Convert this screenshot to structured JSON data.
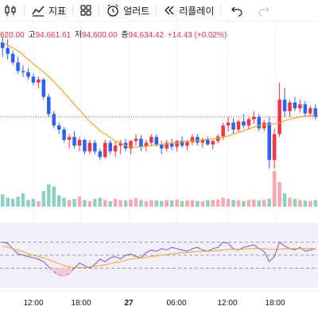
{
  "toolbar": {
    "candle_icon": "candlestick-icon",
    "indicators_label": "지표",
    "layout_icon": "layout-grid-icon",
    "alert_label": "얼러트",
    "replay_label": "리플레이",
    "undo_icon": "undo-icon",
    "redo_icon": "redo-icon"
  },
  "ohlc": {
    "open_value": "620.00",
    "high_label": "고",
    "high_value": "94,661.61",
    "low_label": "저",
    "low_value": "94,600.00",
    "close_label": "종",
    "close_value": "94,634.42",
    "change_value": "+14.43 (+0.02%)"
  },
  "colors": {
    "up": "#f23645",
    "down": "#2962ff",
    "ma": "#f5a623",
    "rsi": "#7e57c2",
    "rsi_band": "#f3effa",
    "overbought_fill": "#f9c8d0",
    "volume_up": "#f7a8b0",
    "volume_down": "#8fd0c4"
  },
  "x_axis": {
    "ticks": [
      "12:00",
      "18:00",
      "27",
      "06:00",
      "12:00",
      "18:00"
    ],
    "bold_tick": "27"
  },
  "chart_data": {
    "type": "candlestick",
    "title": "",
    "candles": [
      [
        600,
        610,
        575,
        590
      ],
      [
        590,
        605,
        570,
        580
      ],
      [
        580,
        585,
        560,
        565
      ],
      [
        565,
        575,
        545,
        550
      ],
      [
        550,
        560,
        540,
        548
      ],
      [
        548,
        555,
        535,
        540
      ],
      [
        540,
        545,
        525,
        530
      ],
      [
        530,
        540,
        520,
        535
      ],
      [
        535,
        538,
        500,
        505
      ],
      [
        505,
        510,
        470,
        475
      ],
      [
        475,
        480,
        450,
        455
      ],
      [
        455,
        460,
        440,
        448
      ],
      [
        448,
        452,
        425,
        430
      ],
      [
        430,
        440,
        415,
        435
      ],
      [
        435,
        445,
        415,
        420
      ],
      [
        420,
        435,
        410,
        430
      ],
      [
        430,
        432,
        405,
        410
      ],
      [
        410,
        430,
        405,
        425
      ],
      [
        425,
        430,
        405,
        410
      ],
      [
        410,
        415,
        395,
        400
      ],
      [
        400,
        430,
        398,
        425
      ],
      [
        425,
        430,
        405,
        410
      ],
      [
        410,
        428,
        400,
        420
      ],
      [
        420,
        430,
        405,
        425
      ],
      [
        425,
        432,
        410,
        415
      ],
      [
        415,
        430,
        405,
        428
      ],
      [
        428,
        440,
        420,
        432
      ],
      [
        432,
        438,
        410,
        418
      ],
      [
        418,
        430,
        410,
        425
      ],
      [
        425,
        440,
        420,
        435
      ],
      [
        435,
        440,
        418,
        422
      ],
      [
        422,
        428,
        405,
        415
      ],
      [
        415,
        430,
        410,
        425
      ],
      [
        425,
        432,
        412,
        418
      ],
      [
        418,
        430,
        410,
        428
      ],
      [
        428,
        436,
        416,
        420
      ],
      [
        420,
        430,
        412,
        426
      ],
      [
        426,
        440,
        420,
        435
      ],
      [
        435,
        440,
        420,
        425
      ],
      [
        425,
        434,
        416,
        430
      ],
      [
        430,
        436,
        420,
        422
      ],
      [
        422,
        430,
        414,
        428
      ],
      [
        428,
        440,
        424,
        436
      ],
      [
        436,
        460,
        430,
        455
      ],
      [
        455,
        470,
        445,
        460
      ],
      [
        460,
        468,
        440,
        448
      ],
      [
        448,
        465,
        442,
        462
      ],
      [
        462,
        475,
        450,
        455
      ],
      [
        455,
        470,
        448,
        466
      ],
      [
        466,
        480,
        458,
        470
      ],
      [
        470,
        475,
        445,
        450
      ],
      [
        450,
        465,
        445,
        460
      ],
      [
        460,
        470,
        380,
        395
      ],
      [
        395,
        450,
        380,
        440
      ],
      [
        440,
        530,
        435,
        500
      ],
      [
        500,
        520,
        470,
        480
      ],
      [
        480,
        500,
        470,
        495
      ],
      [
        495,
        505,
        480,
        485
      ],
      [
        485,
        500,
        478,
        492
      ],
      [
        492,
        498,
        470,
        476
      ],
      [
        476,
        490,
        470,
        485
      ],
      [
        485,
        492,
        466,
        470
      ]
    ],
    "ma": [
      600,
      595,
      590,
      585,
      578,
      570,
      562,
      555,
      548,
      540,
      532,
      522,
      512,
      502,
      492,
      482,
      472,
      462,
      454,
      446,
      440,
      434,
      428,
      424,
      420,
      418,
      417,
      418,
      419,
      420,
      421,
      422,
      423,
      424,
      425,
      426,
      427,
      428,
      429,
      430,
      431,
      432,
      433,
      434,
      437,
      440,
      443,
      446,
      449,
      452,
      455,
      456,
      457,
      458,
      460,
      463,
      466,
      468,
      470,
      471,
      472,
      473
    ],
    "volume": [
      55,
      40,
      35,
      45,
      60,
      30,
      35,
      25,
      70,
      100,
      90,
      50,
      40,
      30,
      35,
      45,
      30,
      25,
      35,
      40,
      30,
      25,
      35,
      30,
      28,
      32,
      38,
      30,
      25,
      30,
      28,
      26,
      30,
      28,
      32,
      26,
      28,
      30,
      26,
      24,
      28,
      30,
      32,
      40,
      35,
      30,
      28,
      26,
      30,
      32,
      28,
      30,
      35,
      160,
      110,
      60,
      40,
      35,
      30,
      28,
      26,
      30
    ],
    "rsi": [
      70,
      68,
      60,
      52,
      50,
      48,
      46,
      44,
      40,
      32,
      25,
      20,
      18,
      22,
      30,
      38,
      34,
      30,
      36,
      44,
      40,
      46,
      48,
      44,
      50,
      52,
      48,
      46,
      54,
      58,
      56,
      60,
      58,
      62,
      60,
      58,
      56,
      60,
      62,
      58,
      56,
      60,
      62,
      70,
      68,
      60,
      58,
      62,
      64,
      66,
      60,
      56,
      40,
      48,
      70,
      64,
      60,
      58,
      62,
      56,
      58,
      60
    ],
    "rsi_ma": [
      64,
      62,
      60,
      58,
      55,
      52,
      50,
      48,
      46,
      43,
      40,
      37,
      34,
      32,
      31,
      31,
      31,
      32,
      33,
      34,
      35,
      37,
      39,
      40,
      42,
      44,
      45,
      46,
      47,
      48,
      49,
      50,
      51,
      52,
      53,
      54,
      54,
      55,
      56,
      56,
      56,
      57,
      57,
      58,
      59,
      59,
      59,
      59,
      60,
      60,
      60,
      60,
      59,
      59,
      59,
      60,
      60,
      60,
      60,
      60,
      60,
      60
    ]
  }
}
